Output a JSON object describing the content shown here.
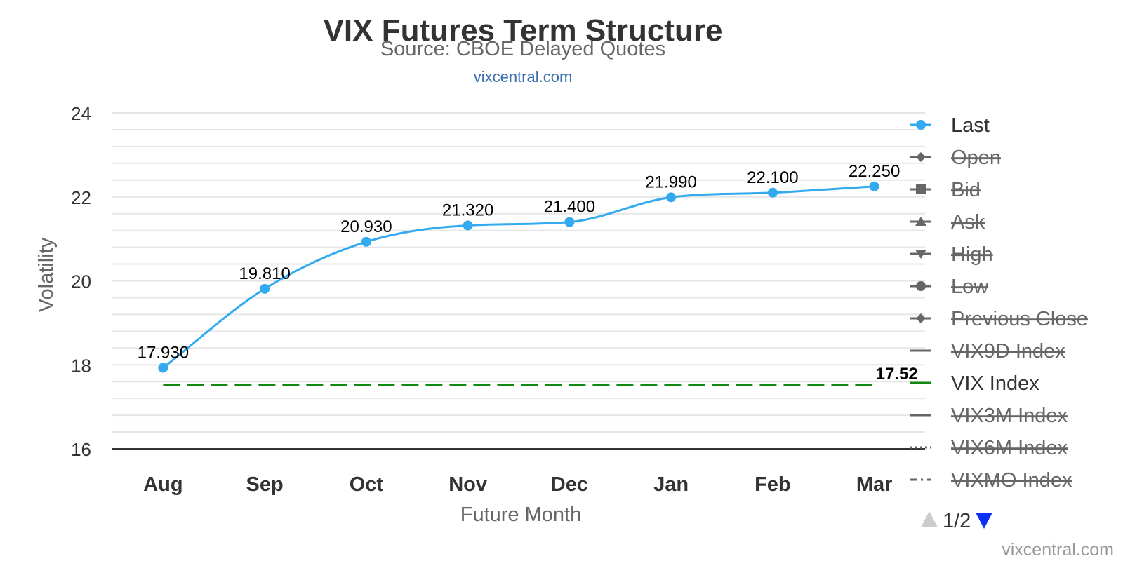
{
  "chart_data": {
    "type": "line",
    "title": "VIX Futures Term Structure",
    "subtitle": "Source: CBOE Delayed Quotes",
    "source_link": "vixcentral.com",
    "xlabel": "Future Month",
    "ylabel": "Volatility",
    "categories": [
      "Aug",
      "Sep",
      "Oct",
      "Nov",
      "Dec",
      "Jan",
      "Feb",
      "Mar"
    ],
    "ylim": [
      16,
      24
    ],
    "yticks": [
      "16",
      "18",
      "20",
      "22",
      "24"
    ],
    "grid": true,
    "legend_position": "right",
    "series": [
      {
        "name": "Last",
        "values": [
          17.93,
          19.81,
          20.93,
          21.32,
          21.4,
          21.99,
          22.1,
          22.25
        ],
        "labels": [
          "17.930",
          "19.810",
          "20.930",
          "21.320",
          "21.400",
          "21.990",
          "22.100",
          "22.250"
        ],
        "color": "#33aaf0",
        "visible": true
      },
      {
        "name": "VIX Index",
        "values": [
          17.52,
          17.52,
          17.52,
          17.52,
          17.52,
          17.52,
          17.52,
          17.52
        ],
        "end_label": "17.52",
        "color": "#118811",
        "dash": "dashed",
        "visible": true
      }
    ],
    "legend": [
      {
        "name": "Last",
        "symbol": "circle",
        "visible": true,
        "color": "#33aaf0"
      },
      {
        "name": "Open",
        "symbol": "diamond",
        "visible": false,
        "color": "#666666"
      },
      {
        "name": "Bid",
        "symbol": "square",
        "visible": false,
        "color": "#666666"
      },
      {
        "name": "Ask",
        "symbol": "triangle",
        "visible": false,
        "color": "#666666"
      },
      {
        "name": "High",
        "symbol": "triangle-down",
        "visible": false,
        "color": "#666666"
      },
      {
        "name": "Low",
        "symbol": "circle",
        "visible": false,
        "color": "#666666"
      },
      {
        "name": "Previous Close",
        "symbol": "diamond",
        "visible": false,
        "color": "#666666"
      },
      {
        "name": "VIX9D Index",
        "symbol": "line",
        "visible": false,
        "color": "#666666"
      },
      {
        "name": "VIX Index",
        "symbol": "line",
        "visible": true,
        "color": "#118811"
      },
      {
        "name": "VIX3M Index",
        "symbol": "line",
        "visible": false,
        "color": "#666666"
      },
      {
        "name": "VIX6M Index",
        "symbol": "dotted",
        "visible": false,
        "color": "#666666"
      },
      {
        "name": "VIXMO Index",
        "symbol": "dashdot",
        "visible": false,
        "color": "#666666"
      }
    ],
    "legend_pager": "1/2",
    "credit": "vixcentral.com"
  }
}
